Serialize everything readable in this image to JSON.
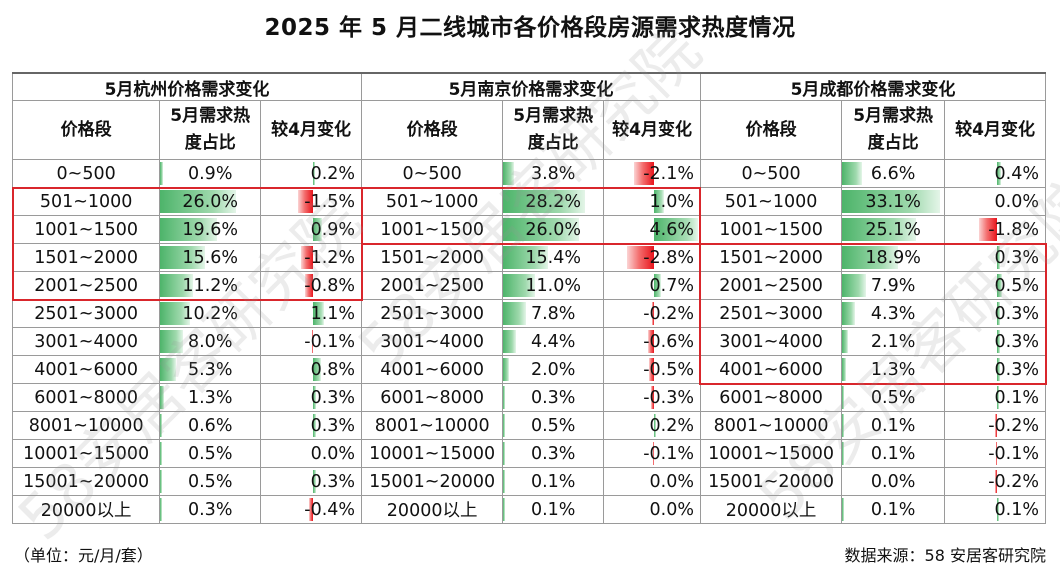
{
  "title": "2025 年 5 月二线城市各价格段房源需求热度情况",
  "footnote_unit": "（单位：元/月/套）",
  "source": "数据来源：58 安居客研究院",
  "watermark": "58安居客研究院",
  "colors": {
    "positive": "#4db46a",
    "negative": "#e8141c",
    "highlight_box": "#d9262c",
    "grid": "#9a9a9a"
  },
  "chart_data": {
    "type": "table",
    "title": "2025 年 5 月二线城市各价格段房源需求热度情况",
    "columns": [
      "价格段",
      "5月需求热度占比",
      "较4月变化"
    ],
    "bands": [
      "0~500",
      "501~1000",
      "1001~1500",
      "1501~2000",
      "2001~2500",
      "2501~3000",
      "3001~4000",
      "4001~6000",
      "6001~8000",
      "8001~10000",
      "10001~15000",
      "15001~20000",
      "20000以上"
    ],
    "cities": [
      {
        "title": "5月杭州价格需求变化",
        "col_band": "价格段",
        "col_share": "5月需求热度占比",
        "col_change": "较4月变化",
        "share": [
          0.9,
          26.0,
          19.6,
          15.6,
          11.2,
          10.2,
          8.0,
          5.3,
          1.3,
          0.6,
          0.5,
          0.5,
          0.3
        ],
        "change": [
          0.2,
          -1.5,
          0.9,
          -1.2,
          -0.8,
          1.1,
          -0.1,
          0.8,
          0.3,
          0.3,
          0.0,
          0.3,
          -0.4
        ],
        "highlighted_bands": [
          "501~1000",
          "1001~1500",
          "1501~2000",
          "2001~2500"
        ]
      },
      {
        "title": "5月南京价格需求变化",
        "col_band": "价格段",
        "col_share": "5月需求热度占比",
        "col_change": "较4月变化",
        "share": [
          3.8,
          28.2,
          26.0,
          15.4,
          11.0,
          7.8,
          4.4,
          2.0,
          0.3,
          0.5,
          0.3,
          0.1,
          0.1
        ],
        "change": [
          -2.1,
          1.0,
          4.6,
          -2.8,
          0.7,
          -0.2,
          -0.6,
          -0.5,
          -0.3,
          0.2,
          -0.1,
          0.0,
          0.0
        ],
        "highlighted_bands": [
          "501~1000",
          "1001~1500"
        ]
      },
      {
        "title": "5月成都价格需求变化",
        "col_band": "价格段",
        "col_share": "5月需求热度占比",
        "col_change": "较4月变化",
        "share": [
          6.6,
          33.1,
          25.1,
          18.9,
          7.9,
          4.3,
          2.1,
          1.3,
          0.5,
          0.1,
          0.1,
          0.0,
          0.1
        ],
        "change": [
          0.4,
          0.0,
          -1.8,
          0.3,
          0.5,
          0.3,
          0.3,
          0.3,
          0.1,
          -0.2,
          -0.1,
          -0.2,
          0.1
        ],
        "highlighted_bands": [
          "1501~2000",
          "2001~2500",
          "2501~3000",
          "3001~4000",
          "4001~6000"
        ]
      }
    ],
    "share_scale_max": 33.1,
    "change_scale_max": 4.6
  }
}
